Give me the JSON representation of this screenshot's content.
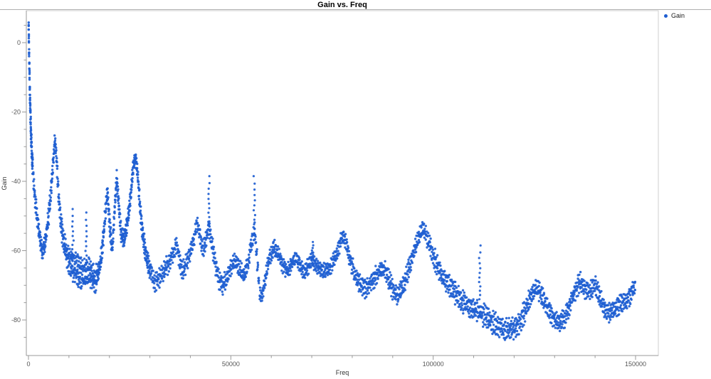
{
  "title": "Gain vs. Freq",
  "legend": {
    "items": [
      {
        "label": "Gain",
        "marker_color": "#1e5ed1"
      }
    ]
  },
  "colors": {
    "point": "#1e5ed1",
    "axis": "#9a9a9a",
    "frame": "#cfcfcf",
    "tick_label": "#555555",
    "axis_label": "#333333"
  },
  "chart_data": {
    "type": "scatter",
    "title": "Gain vs. Freq",
    "xlabel": "Freq",
    "ylabel": "Gain",
    "series_name": "Gain",
    "marker_color": "#1e5ed1",
    "xlim": [
      0,
      155000
    ],
    "ylim": [
      -90,
      9
    ],
    "x_major_ticks": [
      0,
      50000,
      100000,
      150000
    ],
    "x_minor_step": 10000,
    "y_major_ticks": [
      0,
      -20,
      -40,
      -60,
      -80
    ],
    "y_minor_step": 5,
    "grid": false,
    "legend_position": "top-right-outside",
    "n_overlapping_sweeps": 5,
    "backbone_points_freq_gain_spread": [
      [
        40,
        5,
        1.2
      ],
      [
        140,
        -2,
        1.8
      ],
      [
        240,
        -8,
        2
      ],
      [
        340,
        -14,
        2.2
      ],
      [
        460,
        -20,
        2.4
      ],
      [
        620,
        -26,
        2.4
      ],
      [
        820,
        -32,
        2.4
      ],
      [
        1200,
        -39,
        2.4
      ],
      [
        1700,
        -46,
        2.4
      ],
      [
        2300,
        -52,
        2.2
      ],
      [
        2900,
        -57,
        2
      ],
      [
        3500,
        -60.5,
        2
      ],
      [
        4200,
        -57,
        2.4
      ],
      [
        5000,
        -50,
        2.4
      ],
      [
        5600,
        -42,
        2.2
      ],
      [
        6100,
        -34,
        2
      ],
      [
        6500,
        -28,
        1.6
      ],
      [
        6900,
        -33,
        2
      ],
      [
        7400,
        -43,
        2.4
      ],
      [
        8000,
        -52,
        3
      ],
      [
        8800,
        -58,
        3
      ],
      [
        9700,
        -62,
        3.4
      ],
      [
        10600,
        -64,
        3.5
      ],
      [
        11500,
        -65,
        3.8
      ],
      [
        12400,
        -66,
        3.8
      ],
      [
        13400,
        -67,
        3.8
      ],
      [
        14400,
        -66,
        3.8
      ],
      [
        15500,
        -67,
        3.5
      ],
      [
        16500,
        -68,
        3.4
      ],
      [
        17300,
        -66,
        3
      ],
      [
        18000,
        -62,
        2.6
      ],
      [
        18800,
        -52,
        2.4
      ],
      [
        19500,
        -43,
        2
      ],
      [
        20100,
        -53,
        2.4
      ],
      [
        20700,
        -60,
        2.4
      ],
      [
        21300,
        -48,
        2
      ],
      [
        21800,
        -39,
        2
      ],
      [
        22300,
        -47,
        2.4
      ],
      [
        22900,
        -55,
        2.4
      ],
      [
        23600,
        -57,
        2.4
      ],
      [
        24400,
        -52,
        2.4
      ],
      [
        25200,
        -45,
        2
      ],
      [
        25800,
        -37,
        2
      ],
      [
        26400,
        -33,
        1.6
      ],
      [
        27000,
        -38,
        2
      ],
      [
        27600,
        -48,
        2.4
      ],
      [
        28300,
        -56,
        2.4
      ],
      [
        29200,
        -62,
        2.4
      ],
      [
        30200,
        -66,
        2.4
      ],
      [
        31200,
        -69,
        2.4
      ],
      [
        32200,
        -68,
        2.4
      ],
      [
        33300,
        -66,
        2.4
      ],
      [
        34400,
        -64,
        2.4
      ],
      [
        35300,
        -62,
        2
      ],
      [
        36100,
        -60,
        2
      ],
      [
        36600,
        -58,
        2
      ],
      [
        37200,
        -62,
        2.4
      ],
      [
        38000,
        -66,
        2.4
      ],
      [
        38800,
        -64,
        2.4
      ],
      [
        39800,
        -61,
        2
      ],
      [
        40800,
        -57,
        2
      ],
      [
        41700,
        -52,
        2
      ],
      [
        42400,
        -56,
        2.4
      ],
      [
        43100,
        -60,
        2.4
      ],
      [
        43800,
        -57,
        2
      ],
      [
        44500,
        -53,
        2
      ],
      [
        45200,
        -57,
        2.4
      ],
      [
        46000,
        -63,
        2.4
      ],
      [
        47000,
        -68,
        2.4
      ],
      [
        47900,
        -70,
        2.4
      ],
      [
        48900,
        -68,
        2.4
      ],
      [
        50000,
        -65,
        2
      ],
      [
        51000,
        -63,
        2
      ],
      [
        52100,
        -65,
        2
      ],
      [
        53200,
        -67,
        2
      ],
      [
        54200,
        -64,
        2
      ],
      [
        55100,
        -58,
        2
      ],
      [
        55900,
        -54,
        2
      ],
      [
        56500,
        -63,
        2.4
      ],
      [
        57100,
        -72,
        2.4
      ],
      [
        57700,
        -73,
        2
      ],
      [
        58500,
        -68,
        2
      ],
      [
        59500,
        -62,
        2
      ],
      [
        60600,
        -59,
        2
      ],
      [
        61700,
        -61,
        2
      ],
      [
        62800,
        -64,
        2
      ],
      [
        63900,
        -66,
        2
      ],
      [
        65000,
        -64,
        2
      ],
      [
        66000,
        -62,
        2
      ],
      [
        67100,
        -64,
        2
      ],
      [
        68200,
        -66.5,
        2
      ],
      [
        69300,
        -64,
        2
      ],
      [
        70100,
        -62.5,
        2
      ],
      [
        71000,
        -64,
        2
      ],
      [
        72200,
        -65.5,
        2
      ],
      [
        73400,
        -66,
        2
      ],
      [
        74600,
        -65,
        2
      ],
      [
        75800,
        -62,
        2
      ],
      [
        76800,
        -58.5,
        2
      ],
      [
        77700,
        -55.5,
        2
      ],
      [
        78700,
        -59,
        2.4
      ],
      [
        79800,
        -64,
        2.4
      ],
      [
        81000,
        -68,
        2.4
      ],
      [
        82200,
        -70,
        2.4
      ],
      [
        83400,
        -71,
        2.4
      ],
      [
        84700,
        -69,
        2.4
      ],
      [
        86000,
        -67,
        2.4
      ],
      [
        87200,
        -65.5,
        2
      ],
      [
        88000,
        -65,
        2
      ],
      [
        89000,
        -68,
        2.4
      ],
      [
        90200,
        -72,
        2.4
      ],
      [
        91400,
        -73,
        2.4
      ],
      [
        92700,
        -70,
        2.4
      ],
      [
        94000,
        -65,
        2.4
      ],
      [
        95300,
        -60,
        2
      ],
      [
        96500,
        -56,
        2
      ],
      [
        97600,
        -53.5,
        2
      ],
      [
        98700,
        -57,
        2.4
      ],
      [
        99900,
        -61,
        2.6
      ],
      [
        101200,
        -65,
        2.8
      ],
      [
        102600,
        -68,
        2.8
      ],
      [
        104000,
        -70,
        2.8
      ],
      [
        105500,
        -72.5,
        2.8
      ],
      [
        107000,
        -74.5,
        2.8
      ],
      [
        108600,
        -76,
        2.8
      ],
      [
        110200,
        -77,
        2.8
      ],
      [
        111800,
        -78,
        2.8
      ],
      [
        113400,
        -79.5,
        2.8
      ],
      [
        115000,
        -81,
        2.8
      ],
      [
        116600,
        -82,
        2.8
      ],
      [
        118200,
        -83,
        2.8
      ],
      [
        119800,
        -82.5,
        2.8
      ],
      [
        121200,
        -81,
        2.8
      ],
      [
        122600,
        -77.5,
        2.8
      ],
      [
        124000,
        -73.5,
        2.4
      ],
      [
        125400,
        -70.5,
        2.4
      ],
      [
        126800,
        -73,
        2.4
      ],
      [
        128200,
        -76.5,
        2.4
      ],
      [
        129600,
        -79,
        2.4
      ],
      [
        131000,
        -81,
        2.4
      ],
      [
        132400,
        -79.5,
        2.4
      ],
      [
        133800,
        -75.5,
        2.4
      ],
      [
        135100,
        -71.5,
        2.4
      ],
      [
        136300,
        -69,
        2.4
      ],
      [
        137500,
        -71,
        2.4
      ],
      [
        138600,
        -72,
        2.4
      ],
      [
        139800,
        -69.5,
        2.4
      ],
      [
        141000,
        -73,
        2.4
      ],
      [
        142200,
        -76.5,
        2.4
      ],
      [
        143400,
        -78,
        2.4
      ],
      [
        144700,
        -77,
        2.4
      ],
      [
        146000,
        -75.5,
        2.4
      ],
      [
        147300,
        -74.5,
        2.4
      ],
      [
        148600,
        -73,
        2.4
      ],
      [
        149700,
        -70.5,
        2.4
      ]
    ],
    "outlier_spikes_freq_top_base": [
      [
        11000,
        -48,
        -62
      ],
      [
        14200,
        -49,
        -64
      ],
      [
        44600,
        -38.5,
        -54
      ],
      [
        55800,
        -38.5,
        -55
      ],
      [
        70200,
        -57.5,
        -62.5
      ],
      [
        111500,
        -58.5,
        -74
      ]
    ]
  }
}
